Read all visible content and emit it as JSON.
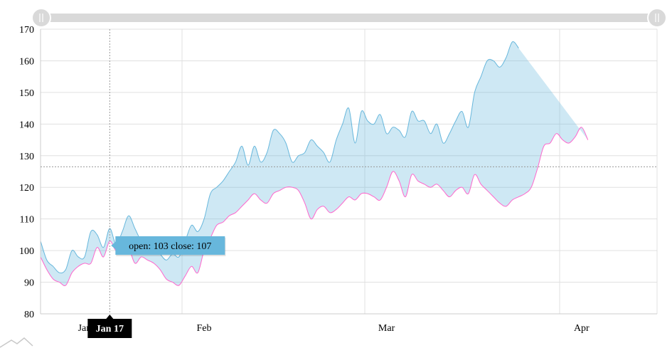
{
  "chart_data": {
    "type": "area",
    "title": "",
    "xlabel": "",
    "ylabel": "",
    "ylim": [
      80,
      170
    ],
    "y_ticks": [
      80,
      90,
      100,
      110,
      120,
      130,
      140,
      150,
      160,
      170
    ],
    "x_range": [
      "2012-01-06",
      "2012-04-13"
    ],
    "x_ticks": [
      {
        "label": "Jan",
        "date": "2012-01-13",
        "shown": false
      },
      {
        "label": "Feb",
        "date": "2012-02-01",
        "shown": true
      },
      {
        "label": "Mar",
        "date": "2012-03-01",
        "shown": true
      },
      {
        "label": "Apr",
        "date": "2012-04-01",
        "shown": true
      }
    ],
    "grid": true,
    "guide_value": 126.5,
    "series": [
      {
        "key": "open",
        "color": "#ff66cc",
        "points": [
          [
            "2012-01-06",
            98
          ],
          [
            "2012-01-07",
            94
          ],
          [
            "2012-01-08",
            91
          ],
          [
            "2012-01-09",
            90
          ],
          [
            "2012-01-10",
            89
          ],
          [
            "2012-01-11",
            93
          ],
          [
            "2012-01-12",
            95
          ],
          [
            "2012-01-13",
            96
          ],
          [
            "2012-01-14",
            96
          ],
          [
            "2012-01-15",
            101
          ],
          [
            "2012-01-16",
            98
          ],
          [
            "2012-01-17",
            103
          ],
          [
            "2012-01-18",
            100
          ],
          [
            "2012-01-19",
            102
          ],
          [
            "2012-01-20",
            101
          ],
          [
            "2012-01-21",
            96
          ],
          [
            "2012-01-22",
            98
          ],
          [
            "2012-01-23",
            97
          ],
          [
            "2012-01-24",
            96
          ],
          [
            "2012-01-25",
            94
          ],
          [
            "2012-01-26",
            91
          ],
          [
            "2012-01-27",
            90
          ],
          [
            "2012-01-28",
            89
          ],
          [
            "2012-01-29",
            92
          ],
          [
            "2012-01-30",
            95
          ],
          [
            "2012-01-31",
            93
          ],
          [
            "2012-02-01",
            100
          ],
          [
            "2012-02-02",
            104
          ],
          [
            "2012-02-03",
            108
          ],
          [
            "2012-02-04",
            109
          ],
          [
            "2012-02-05",
            111
          ],
          [
            "2012-02-06",
            112
          ],
          [
            "2012-02-07",
            114
          ],
          [
            "2012-02-08",
            116
          ],
          [
            "2012-02-09",
            118
          ],
          [
            "2012-02-10",
            116
          ],
          [
            "2012-02-11",
            115
          ],
          [
            "2012-02-12",
            118
          ],
          [
            "2012-02-13",
            119
          ],
          [
            "2012-02-14",
            120
          ],
          [
            "2012-02-15",
            120
          ],
          [
            "2012-02-16",
            119
          ],
          [
            "2012-02-17",
            115
          ],
          [
            "2012-02-18",
            110
          ],
          [
            "2012-02-19",
            113
          ],
          [
            "2012-02-20",
            114
          ],
          [
            "2012-02-21",
            112
          ],
          [
            "2012-02-22",
            113
          ],
          [
            "2012-02-23",
            115
          ],
          [
            "2012-02-24",
            117
          ],
          [
            "2012-02-25",
            116
          ],
          [
            "2012-02-26",
            118
          ],
          [
            "2012-02-27",
            118
          ],
          [
            "2012-02-28",
            117
          ],
          [
            "2012-02-29",
            116
          ],
          [
            "2012-03-01",
            120
          ],
          [
            "2012-03-02",
            125
          ],
          [
            "2012-03-03",
            122
          ],
          [
            "2012-03-04",
            117
          ],
          [
            "2012-03-05",
            124
          ],
          [
            "2012-03-06",
            122
          ],
          [
            "2012-03-07",
            121
          ],
          [
            "2012-03-08",
            120
          ],
          [
            "2012-03-09",
            121
          ],
          [
            "2012-03-10",
            119
          ],
          [
            "2012-03-11",
            117
          ],
          [
            "2012-03-12",
            119
          ],
          [
            "2012-03-13",
            120
          ],
          [
            "2012-03-14",
            118
          ],
          [
            "2012-03-15",
            124
          ],
          [
            "2012-03-16",
            121
          ],
          [
            "2012-03-17",
            119
          ],
          [
            "2012-03-18",
            117
          ],
          [
            "2012-03-19",
            115
          ],
          [
            "2012-03-20",
            114
          ],
          [
            "2012-03-21",
            116
          ],
          [
            "2012-03-22",
            117
          ],
          [
            "2012-03-23",
            118
          ],
          [
            "2012-03-24",
            120
          ],
          [
            "2012-03-25",
            126
          ],
          [
            "2012-03-26",
            133
          ],
          [
            "2012-03-27",
            134
          ],
          [
            "2012-03-28",
            137
          ],
          [
            "2012-03-29",
            135
          ],
          [
            "2012-03-30",
            134
          ],
          [
            "2012-03-31",
            136
          ],
          [
            "2012-04-01",
            139
          ],
          [
            "2012-04-02",
            135
          ]
        ]
      },
      {
        "key": "close",
        "color": "#67b7dc",
        "points": [
          [
            "2012-01-06",
            103
          ],
          [
            "2012-01-07",
            97
          ],
          [
            "2012-01-08",
            95
          ],
          [
            "2012-01-09",
            93
          ],
          [
            "2012-01-10",
            94
          ],
          [
            "2012-01-11",
            100
          ],
          [
            "2012-01-12",
            98
          ],
          [
            "2012-01-13",
            98
          ],
          [
            "2012-01-14",
            106
          ],
          [
            "2012-01-15",
            105
          ],
          [
            "2012-01-16",
            101
          ],
          [
            "2012-01-17",
            107
          ],
          [
            "2012-01-18",
            102
          ],
          [
            "2012-01-19",
            106
          ],
          [
            "2012-01-20",
            111
          ],
          [
            "2012-01-21",
            107
          ],
          [
            "2012-01-22",
            103
          ],
          [
            "2012-01-23",
            101
          ],
          [
            "2012-01-24",
            102
          ],
          [
            "2012-01-25",
            99
          ],
          [
            "2012-01-26",
            97
          ],
          [
            "2012-01-27",
            99
          ],
          [
            "2012-01-28",
            98
          ],
          [
            "2012-01-29",
            103
          ],
          [
            "2012-01-30",
            108
          ],
          [
            "2012-01-31",
            106
          ],
          [
            "2012-02-01",
            110
          ],
          [
            "2012-02-02",
            118
          ],
          [
            "2012-02-03",
            120
          ],
          [
            "2012-02-04",
            122
          ],
          [
            "2012-02-05",
            125
          ],
          [
            "2012-02-06",
            128
          ],
          [
            "2012-02-07",
            133
          ],
          [
            "2012-02-08",
            127
          ],
          [
            "2012-02-09",
            133
          ],
          [
            "2012-02-10",
            128
          ],
          [
            "2012-02-11",
            131
          ],
          [
            "2012-02-12",
            138
          ],
          [
            "2012-02-13",
            137
          ],
          [
            "2012-02-14",
            134
          ],
          [
            "2012-02-15",
            128
          ],
          [
            "2012-02-16",
            130
          ],
          [
            "2012-02-17",
            131
          ],
          [
            "2012-02-18",
            135
          ],
          [
            "2012-02-19",
            133
          ],
          [
            "2012-02-20",
            131
          ],
          [
            "2012-02-21",
            128
          ],
          [
            "2012-02-22",
            135
          ],
          [
            "2012-02-23",
            140
          ],
          [
            "2012-02-24",
            145
          ],
          [
            "2012-02-25",
            134
          ],
          [
            "2012-02-26",
            144
          ],
          [
            "2012-02-27",
            141
          ],
          [
            "2012-02-28",
            140
          ],
          [
            "2012-02-29",
            143
          ],
          [
            "2012-03-01",
            137
          ],
          [
            "2012-03-02",
            139
          ],
          [
            "2012-03-03",
            138
          ],
          [
            "2012-03-04",
            136
          ],
          [
            "2012-03-05",
            144
          ],
          [
            "2012-03-06",
            141
          ],
          [
            "2012-03-07",
            141
          ],
          [
            "2012-03-08",
            137
          ],
          [
            "2012-03-09",
            140
          ],
          [
            "2012-03-10",
            134
          ],
          [
            "2012-03-11",
            137
          ],
          [
            "2012-03-12",
            141
          ],
          [
            "2012-03-13",
            144
          ],
          [
            "2012-03-14",
            139
          ],
          [
            "2012-03-15",
            150
          ],
          [
            "2012-03-16",
            155
          ],
          [
            "2012-03-17",
            160
          ],
          [
            "2012-03-18",
            160
          ],
          [
            "2012-03-19",
            158
          ],
          [
            "2012-03-20",
            161
          ],
          [
            "2012-03-21",
            166
          ],
          [
            "2012-03-22",
            164
          ]
        ]
      }
    ],
    "cursor": {
      "date": "2012-01-17",
      "label": "Jan 17"
    },
    "tooltip": {
      "text": "open: 103 close: 107"
    }
  }
}
